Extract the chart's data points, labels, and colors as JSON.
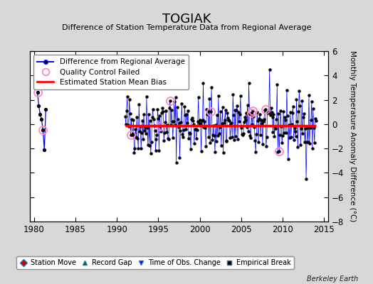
{
  "title": "TOGIAK",
  "subtitle": "Difference of Station Temperature Data from Regional Average",
  "ylabel": "Monthly Temperature Anomaly Difference (°C)",
  "xlim": [
    1979.5,
    2015.5
  ],
  "ylim": [
    -8,
    6
  ],
  "yticks": [
    -8,
    -6,
    -4,
    -2,
    0,
    2,
    4,
    6
  ],
  "xticks": [
    1980,
    1985,
    1990,
    1995,
    2000,
    2005,
    2010,
    2015
  ],
  "background_color": "#d8d8d8",
  "plot_bg_color": "#ffffff",
  "line_color": "#0000ff",
  "bias_color": "#ff0000",
  "marker_color": "#000000",
  "qc_fail_color": "#ff88cc",
  "bias_value": -0.1,
  "watermark": "Berkeley Earth",
  "early_times": [
    1980.42,
    1980.58,
    1980.75,
    1980.92,
    1981.08,
    1981.25,
    1981.42
  ],
  "early_vals": [
    2.6,
    1.5,
    0.8,
    0.4,
    -0.5,
    -2.1,
    1.2
  ],
  "early_qc": [
    0,
    4
  ],
  "seed_main": 42,
  "seed_qc": 17,
  "main_start": 1991.0,
  "main_end": 2014.0
}
